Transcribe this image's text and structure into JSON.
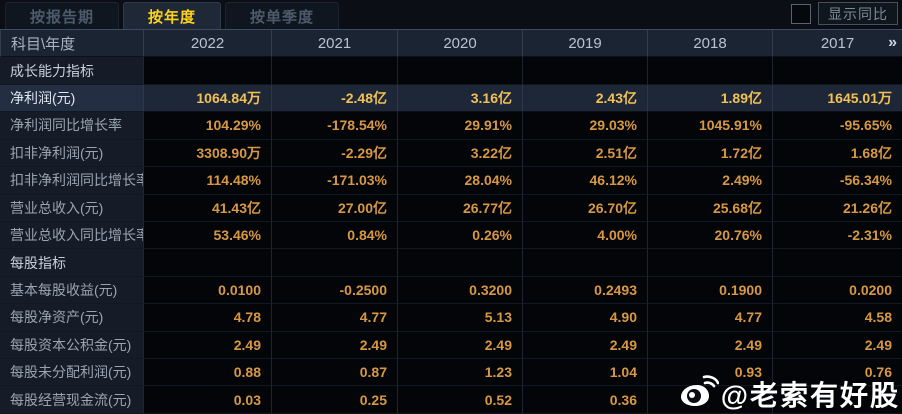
{
  "tabs": [
    {
      "label": "按报告期",
      "active": false
    },
    {
      "label": "按年度",
      "active": true
    },
    {
      "label": "按单季度",
      "active": false
    }
  ],
  "controls": {
    "show_yoy_label": "显示同比",
    "checkbox_checked": false,
    "more_years_icon": "»"
  },
  "table": {
    "corner_label": "科目\\年度",
    "years": [
      "2022",
      "2021",
      "2020",
      "2019",
      "2018",
      "2017"
    ],
    "rows": [
      {
        "type": "section",
        "label": "成长能力指标",
        "values": [
          "",
          "",
          "",
          "",
          "",
          ""
        ]
      },
      {
        "type": "highlight",
        "label": "净利润(元)",
        "values": [
          "1064.84万",
          "-2.48亿",
          "3.16亿",
          "2.43亿",
          "1.89亿",
          "1645.01万"
        ]
      },
      {
        "type": "data",
        "label": "净利润同比增长率",
        "values": [
          "104.29%",
          "-178.54%",
          "29.91%",
          "29.03%",
          "1045.91%",
          "-95.65%"
        ]
      },
      {
        "type": "data",
        "label": "扣非净利润(元)",
        "values": [
          "3308.90万",
          "-2.29亿",
          "3.22亿",
          "2.51亿",
          "1.72亿",
          "1.68亿"
        ]
      },
      {
        "type": "data",
        "label": "扣非净利润同比增长率",
        "values": [
          "114.48%",
          "-171.03%",
          "28.04%",
          "46.12%",
          "2.49%",
          "-56.34%"
        ]
      },
      {
        "type": "data",
        "label": "营业总收入(元)",
        "values": [
          "41.43亿",
          "27.00亿",
          "26.77亿",
          "26.70亿",
          "25.68亿",
          "21.26亿"
        ]
      },
      {
        "type": "data",
        "label": "营业总收入同比增长率",
        "values": [
          "53.46%",
          "0.84%",
          "0.26%",
          "4.00%",
          "20.76%",
          "-2.31%"
        ]
      },
      {
        "type": "section",
        "label": "每股指标",
        "values": [
          "",
          "",
          "",
          "",
          "",
          ""
        ]
      },
      {
        "type": "data",
        "label": "基本每股收益(元)",
        "values": [
          "0.0100",
          "-0.2500",
          "0.3200",
          "0.2493",
          "0.1900",
          "0.0200"
        ]
      },
      {
        "type": "data",
        "label": "每股净资产(元)",
        "values": [
          "4.78",
          "4.77",
          "5.13",
          "4.90",
          "4.77",
          "4.58"
        ]
      },
      {
        "type": "data",
        "label": "每股资本公积金(元)",
        "values": [
          "2.49",
          "2.49",
          "2.49",
          "2.49",
          "2.49",
          "2.49"
        ]
      },
      {
        "type": "data",
        "label": "每股未分配利润(元)",
        "values": [
          "0.88",
          "0.87",
          "1.23",
          "1.04",
          "0.93",
          "0.76"
        ]
      },
      {
        "type": "data",
        "label": "每股经营现金流(元)",
        "values": [
          "0.03",
          "0.25",
          "0.52",
          "0.36",
          "",
          ""
        ]
      }
    ]
  },
  "watermark": {
    "text": "@老索有好股",
    "icon": "weibo-logo"
  },
  "colors": {
    "accent_yellow": "#ffd21c",
    "value_orange": "#d89843",
    "highlight_gold": "#f2c156",
    "header_bg": "#1b2433",
    "label_bg": "#151c27",
    "highlight_bg": "#1e2737",
    "data_bg": "#030508"
  }
}
